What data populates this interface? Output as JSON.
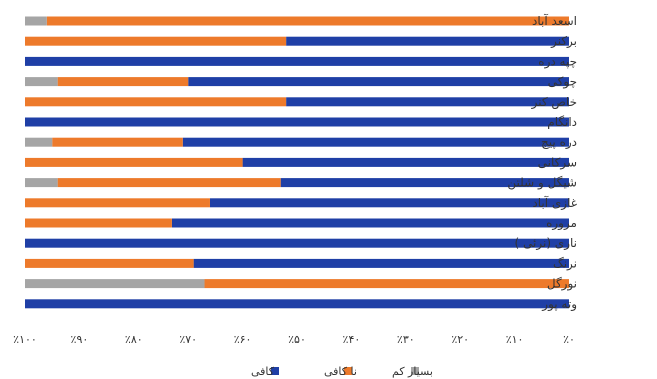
{
  "chart_data": {
    "type": "bar",
    "orientation": "horizontal",
    "stacked": "percent",
    "x_reversed": true,
    "categories": [
      "اسعد آباد",
      "برکنر",
      "چپه دره",
      "چوکی",
      "خاص کنر",
      "دانگام",
      "دره پیچ",
      "سرکانی",
      "شیگل و شلتن",
      "غازی آباد",
      "مروره",
      "ناری (نرئی )",
      "نرنگ",
      "نورگل",
      "وته پور"
    ],
    "series": [
      {
        "name": "کافی",
        "color": "#1F3FA6",
        "values": [
          0,
          52,
          100,
          70,
          52,
          100,
          71,
          60,
          53,
          66,
          73,
          100,
          69,
          0,
          100
        ]
      },
      {
        "name": "نا کافی",
        "color": "#ED7A2B",
        "values": [
          96,
          48,
          0,
          24,
          48,
          0,
          24,
          40,
          41,
          34,
          27,
          0,
          31,
          67,
          0
        ]
      },
      {
        "name": "بسیار کم",
        "color": "#A5A5A5",
        "values": [
          4,
          0,
          0,
          6,
          0,
          0,
          5,
          0,
          6,
          0,
          0,
          0,
          0,
          33,
          0
        ]
      }
    ],
    "tick_labels": [
      "٪۰",
      "٪۱۰",
      "٪۲۰",
      "٪۳۰",
      "٪۴۰",
      "٪۵۰",
      "٪۶۰",
      "٪۷۰",
      "٪۸۰",
      "٪۹۰",
      "٪۱۰۰"
    ],
    "xlim": [
      0,
      100
    ],
    "legend_position": "bottom",
    "legend_order": [
      "کافی",
      "نا کافی",
      "بسیار کم"
    ],
    "grid": false
  }
}
